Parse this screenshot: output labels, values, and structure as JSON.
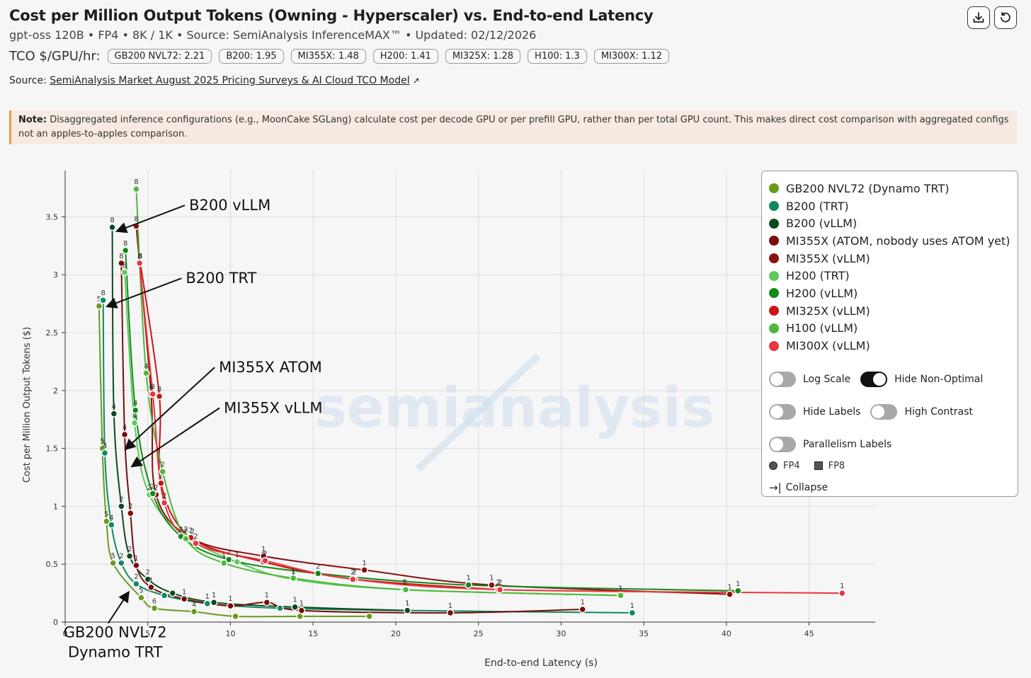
{
  "header": {
    "title": "Cost per Million Output Tokens (Owning - Hyperscaler) vs. End-to-end Latency",
    "subtitle": "gpt-oss 120B • FP4 • 8K / 1K • Source: SemiAnalysis InferenceMAX™ • Updated: 02/12/2026",
    "tco_label": "TCO $/GPU/hr:",
    "tco_pills": [
      "GB200 NVL72: 2.21",
      "B200: 1.95",
      "MI355X: 1.48",
      "H200: 1.41",
      "MI325X: 1.28",
      "H100: 1.3",
      "MI300X: 1.12"
    ],
    "source_prefix": "Source:",
    "source_link": "SemiAnalysis Market August 2025 Pricing Surveys & AI Cloud TCO Model"
  },
  "note": {
    "bold": "Note:",
    "text": "Disaggregated inference configurations (e.g., MoonCake SGLang) calculate cost per decode GPU or per prefill GPU, rather than per total GPU count. This makes direct cost comparison with aggregated configs not an apples-to-apples comparison."
  },
  "watermark": "semianalysis",
  "legend": {
    "items": [
      {
        "label": "GB200 NVL72 (Dynamo TRT)",
        "color": "#6b9a1e"
      },
      {
        "label": "B200 (TRT)",
        "color": "#0f8a5f"
      },
      {
        "label": "B200 (vLLM)",
        "color": "#0d4a1e"
      },
      {
        "label": "MI355X (ATOM, nobody uses ATOM yet)",
        "color": "#7a0c0c"
      },
      {
        "label": "MI355X (vLLM)",
        "color": "#8a1010"
      },
      {
        "label": "H200 (TRT)",
        "color": "#5dc95a"
      },
      {
        "label": "H200 (vLLM)",
        "color": "#118a1a"
      },
      {
        "label": "MI325X (vLLM)",
        "color": "#c91515"
      },
      {
        "label": "H100 (vLLM)",
        "color": "#4cb93a"
      },
      {
        "label": "MI300X (vLLM)",
        "color": "#e8363f"
      }
    ],
    "toggles": {
      "log_scale": "Log Scale",
      "hide_non_optimal": "Hide Non-Optimal",
      "hide_labels": "Hide Labels",
      "high_contrast": "High Contrast",
      "parallelism_labels": "Parallelism Labels"
    },
    "format_fp4": "FP4",
    "format_fp8": "FP8",
    "collapse": "Collapse"
  },
  "chart_data": {
    "type": "line",
    "title": "Cost per Million Output Tokens (Owning - Hyperscaler) vs. End-to-end Latency",
    "xlabel": "End-to-end Latency (s)",
    "ylabel": "Cost per Million Output Tokens ($)",
    "xlim": [
      0,
      49
    ],
    "ylim": [
      0,
      3.9
    ],
    "xticks": [
      0,
      5,
      10,
      15,
      20,
      25,
      30,
      35,
      40,
      45
    ],
    "yticks": [
      0,
      0.5,
      1,
      1.5,
      2,
      2.5,
      3,
      3.5
    ],
    "xtick_labels": [
      "0",
      "5",
      "10",
      "15",
      "20",
      "25",
      "30",
      "35",
      "40",
      "45"
    ],
    "ytick_labels": [
      "0",
      "0.5",
      "1",
      "1.5",
      "2",
      "2.5",
      "3",
      "3.5"
    ],
    "grid": true,
    "legend_position": "top-right",
    "series": [
      {
        "name": "GB200 NVL72 (Dynamo TRT)",
        "color": "#6b9a1e",
        "points": [
          [
            2.05,
            2.73,
            "5"
          ],
          [
            2.25,
            1.5,
            "5"
          ],
          [
            2.5,
            0.87,
            "5"
          ],
          [
            2.9,
            0.51,
            "5"
          ],
          [
            4.6,
            0.21,
            "5"
          ],
          [
            5.4,
            0.12,
            "6"
          ],
          [
            7.8,
            0.09,
            "4"
          ],
          [
            10.3,
            0.05,
            ""
          ],
          [
            14.2,
            0.05,
            ""
          ],
          [
            18.4,
            0.05,
            ""
          ]
        ]
      },
      {
        "name": "B200 (TRT)",
        "color": "#0f8a5f",
        "points": [
          [
            2.3,
            2.78,
            "8"
          ],
          [
            2.4,
            1.46,
            "4"
          ],
          [
            2.8,
            0.84,
            "4"
          ],
          [
            3.4,
            0.51,
            "2"
          ],
          [
            4.3,
            0.33,
            "2"
          ],
          [
            6.0,
            0.23,
            ""
          ],
          [
            8.6,
            0.16,
            "1"
          ],
          [
            13.0,
            0.12,
            ""
          ],
          [
            20.7,
            0.1,
            "1"
          ],
          [
            34.3,
            0.08,
            "1"
          ]
        ]
      },
      {
        "name": "B200 (vLLM)",
        "color": "#0d4a1e",
        "points": [
          [
            2.85,
            3.41,
            "8"
          ],
          [
            2.95,
            1.8,
            "4"
          ],
          [
            3.4,
            1.0,
            "2"
          ],
          [
            3.9,
            0.57,
            "2"
          ],
          [
            5.0,
            0.37,
            "2"
          ],
          [
            6.5,
            0.25,
            ""
          ],
          [
            9.0,
            0.17,
            "1"
          ],
          [
            13.9,
            0.13,
            "1"
          ],
          [
            20.7,
            0.1,
            "1"
          ]
        ]
      },
      {
        "name": "MI355X (ATOM, nobody uses ATOM yet)",
        "color": "#7a0c0c",
        "points": [
          [
            3.4,
            3.1,
            "8"
          ],
          [
            3.6,
            1.62,
            "4"
          ],
          [
            3.95,
            0.94,
            "2"
          ],
          [
            4.3,
            0.49,
            "1"
          ],
          [
            5.2,
            0.3,
            "1"
          ],
          [
            7.2,
            0.2,
            "1"
          ],
          [
            10.0,
            0.14,
            "1"
          ],
          [
            12.2,
            0.17,
            "1"
          ],
          [
            14.3,
            0.1,
            "1"
          ],
          [
            23.3,
            0.08,
            "1"
          ],
          [
            31.3,
            0.11,
            "1"
          ]
        ]
      },
      {
        "name": "MI355X (vLLM)",
        "color": "#8a1010",
        "points": [
          [
            4.3,
            3.42,
            "8"
          ],
          [
            5.2,
            1.97,
            "4"
          ],
          [
            5.5,
            1.1,
            "2"
          ],
          [
            7.7,
            0.72,
            "2"
          ],
          [
            12.0,
            0.57,
            "1"
          ],
          [
            18.1,
            0.45,
            "1"
          ],
          [
            25.8,
            0.32,
            "1"
          ],
          [
            40.2,
            0.24,
            "1"
          ]
        ]
      },
      {
        "name": "H200 (TRT)",
        "color": "#5dc95a",
        "points": [
          [
            3.6,
            3.02,
            "8"
          ],
          [
            4.2,
            1.72,
            "4"
          ],
          [
            5.1,
            1.1,
            "2"
          ],
          [
            7.3,
            0.74,
            "2"
          ],
          [
            10.4,
            0.52,
            "1"
          ],
          [
            13.8,
            0.37,
            "1"
          ],
          [
            20.5,
            0.28,
            "1"
          ],
          [
            33.6,
            0.23,
            "1"
          ]
        ]
      },
      {
        "name": "H200 (vLLM)",
        "color": "#118a1a",
        "points": [
          [
            3.65,
            3.21,
            "8"
          ],
          [
            4.25,
            1.83,
            "4"
          ],
          [
            5.3,
            1.11,
            "2"
          ],
          [
            7.0,
            0.74,
            "2"
          ],
          [
            9.9,
            0.54,
            "2"
          ],
          [
            15.3,
            0.42,
            "2"
          ],
          [
            24.4,
            0.32,
            "1"
          ],
          [
            40.7,
            0.27,
            "1"
          ]
        ]
      },
      {
        "name": "MI325X (vLLM)",
        "color": "#c91515",
        "points": [
          [
            4.55,
            3.1,
            "8"
          ],
          [
            5.7,
            1.95,
            "8"
          ],
          [
            5.8,
            1.2,
            "2"
          ],
          [
            7.6,
            0.73,
            "2"
          ],
          [
            12.0,
            0.52,
            "2"
          ],
          [
            17.5,
            0.37,
            "2"
          ],
          [
            26.2,
            0.28,
            "2"
          ]
        ]
      },
      {
        "name": "H100 (vLLM)",
        "color": "#4cb93a",
        "points": [
          [
            4.3,
            3.74,
            "8"
          ],
          [
            4.9,
            2.15,
            "4"
          ],
          [
            5.9,
            1.3,
            "2"
          ],
          [
            7.3,
            0.72,
            "2"
          ],
          [
            9.6,
            0.51,
            "1"
          ],
          [
            13.8,
            0.38,
            "1"
          ],
          [
            20.6,
            0.28,
            "1"
          ],
          [
            33.6,
            0.23,
            "1"
          ]
        ]
      },
      {
        "name": "MI300X (vLLM)",
        "color": "#e8363f",
        "points": [
          [
            4.5,
            3.1,
            "8"
          ],
          [
            5.3,
            1.97,
            "8"
          ],
          [
            6.0,
            1.03,
            "2"
          ],
          [
            7.9,
            0.68,
            "2"
          ],
          [
            12.1,
            0.53,
            "2"
          ],
          [
            17.4,
            0.37,
            "2"
          ],
          [
            26.3,
            0.28,
            "2"
          ],
          [
            47.0,
            0.25,
            "1"
          ]
        ]
      }
    ],
    "annotations": [
      {
        "text": "B200 vLLM",
        "tx": 3.2,
        "ty": 3.38,
        "lx": 7.5,
        "ly": 3.6
      },
      {
        "text": "B200 TRT",
        "tx": 2.6,
        "ty": 2.73,
        "lx": 7.3,
        "ly": 2.97
      },
      {
        "text": "MI355X ATOM",
        "tx": 3.7,
        "ty": 1.5,
        "lx": 9.3,
        "ly": 2.2
      },
      {
        "text": "MI355X vLLM",
        "tx": 4.1,
        "ty": 1.35,
        "lx": 9.6,
        "ly": 1.85
      },
      {
        "text": "GB200 NVL72\nDynamo TRT",
        "tx": 3.8,
        "ty": 0.25,
        "lx": 2.6,
        "ly": -0.12
      }
    ]
  }
}
